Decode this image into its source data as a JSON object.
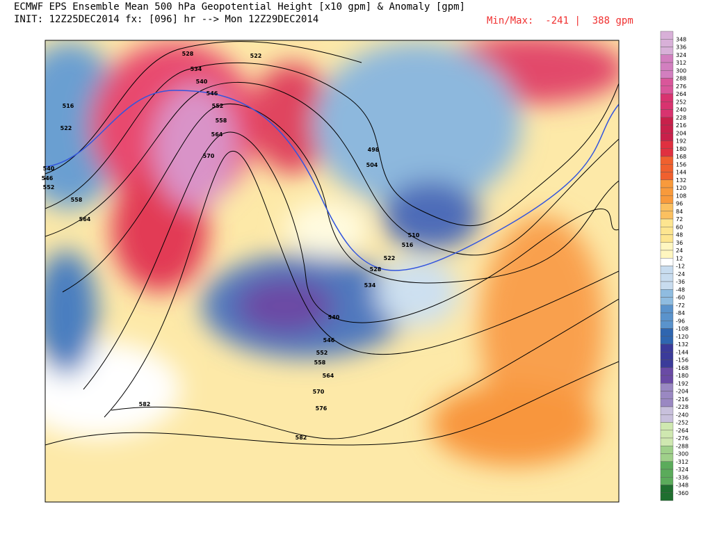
{
  "header": {
    "title": "ECMWF EPS Ensemble Mean 500 hPa Geopotential Height [x10 gpm] & Anomaly [gpm]",
    "subtitle": "INIT: 12Z25DEC2014 fx: [096] hr --> Mon 12Z29DEC2014",
    "min_max": {
      "label": "Min/Max:",
      "min": -241,
      "max": 388,
      "unit": "gpm"
    }
  },
  "colorbar": {
    "levels": [
      348,
      336,
      324,
      312,
      300,
      288,
      276,
      264,
      252,
      240,
      228,
      216,
      204,
      192,
      180,
      168,
      156,
      144,
      132,
      120,
      108,
      96,
      84,
      72,
      60,
      48,
      36,
      24,
      12,
      -12,
      -24,
      -36,
      -48,
      -60,
      -72,
      -84,
      -96,
      -108,
      -120,
      -132,
      -144,
      -156,
      -168,
      -180,
      -192,
      -204,
      -216,
      -228,
      -240,
      -252,
      -264,
      -276,
      -288,
      -300,
      -312,
      -324,
      -336,
      -348,
      -360
    ]
  },
  "map": {
    "contour_labels": [
      528,
      522,
      534,
      540,
      546,
      552,
      558,
      564,
      570,
      516,
      522,
      540,
      546,
      552,
      558,
      564,
      582,
      582,
      576,
      570,
      564,
      558,
      552,
      546,
      540,
      534,
      528,
      522,
      516,
      510,
      498,
      504
    ]
  }
}
